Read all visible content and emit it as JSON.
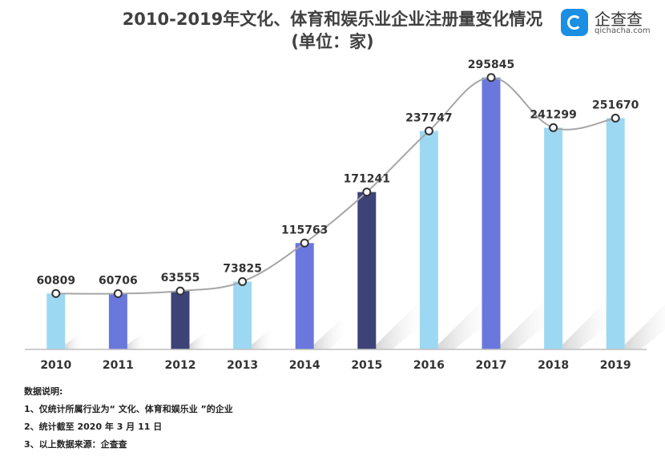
{
  "title": {
    "line1": "2010-2019年文化、体育和娱乐业企业注册量变化情况",
    "line2": "(单位：家)"
  },
  "logo": {
    "name": "企查查",
    "domain": "qichacha.com"
  },
  "colors": {
    "light": "#9dd8f3",
    "mid": "#6a78de",
    "dark": "#3d4377",
    "line": "#a6a6a6",
    "axis": "#bfbfbf"
  },
  "chart_data": {
    "type": "bar",
    "categories": [
      "2010",
      "2011",
      "2012",
      "2013",
      "2014",
      "2015",
      "2016",
      "2017",
      "2018",
      "2019"
    ],
    "values": [
      60809,
      60706,
      63555,
      73825,
      115763,
      171241,
      237747,
      295845,
      241299,
      251670
    ],
    "bar_colors": [
      "light",
      "mid",
      "dark",
      "light",
      "mid",
      "dark",
      "light",
      "mid",
      "light",
      "light"
    ],
    "overlay_line": true,
    "ylim": [
      0,
      300000
    ],
    "grid": false,
    "legend": "none"
  },
  "notes": {
    "heading": "数据说明:",
    "items": [
      "1、仅统计所属行业为“ 文化、体育和娱乐业 ”的企业",
      "2、统计截至 2020 年 3 月 11 日",
      "3、以上数据来源：企查查"
    ]
  }
}
